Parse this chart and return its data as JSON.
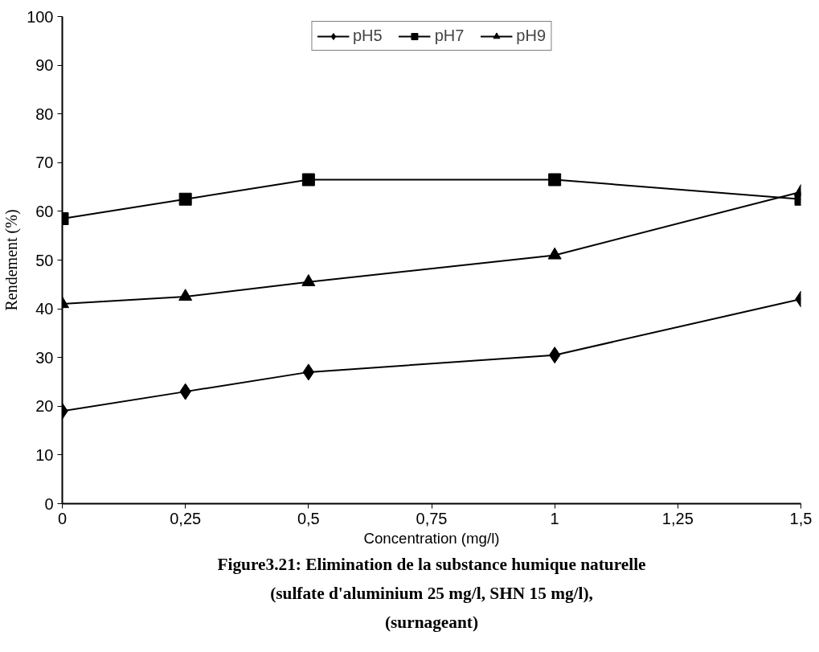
{
  "chart_data": {
    "type": "line",
    "x": [
      0,
      0.25,
      0.5,
      1,
      1.5
    ],
    "xlabel": "Concentration (mg/l)",
    "ylabel": "Rendement (%)",
    "series": [
      {
        "name": "pH5",
        "color": "#000000",
        "marker": "diamond",
        "values": [
          19,
          23,
          27,
          30.5,
          42
        ]
      },
      {
        "name": "pH7",
        "color": "#000000",
        "marker": "square",
        "values": [
          58.5,
          62.5,
          66.5,
          66.5,
          62.5
        ]
      },
      {
        "name": "pH9",
        "color": "#000000",
        "marker": "triangle",
        "values": [
          41,
          42.5,
          45.5,
          51,
          64
        ]
      }
    ],
    "xlim": [
      0,
      1.5
    ],
    "ylim": [
      0,
      100
    ],
    "xticks": [
      0,
      {
        "value": 0.25,
        "label": "0,25"
      },
      {
        "value": 0.5,
        "label": "0,5"
      },
      {
        "value": 0.75,
        "label": "0,75"
      },
      1,
      {
        "value": 1.25,
        "label": "1,25"
      },
      {
        "value": 1.5,
        "label": "1,5"
      }
    ],
    "yticks": [
      0,
      10,
      20,
      30,
      40,
      50,
      60,
      70,
      80,
      90,
      100
    ],
    "grid": false,
    "legend": "top",
    "line_style": "solid",
    "annotations": [
      "Figure3.21: Elimination de la substance humique naturelle",
      "(sulfate d'aluminium 25 mg/l, SHN 15 mg/l),",
      "(surnageant)"
    ]
  }
}
